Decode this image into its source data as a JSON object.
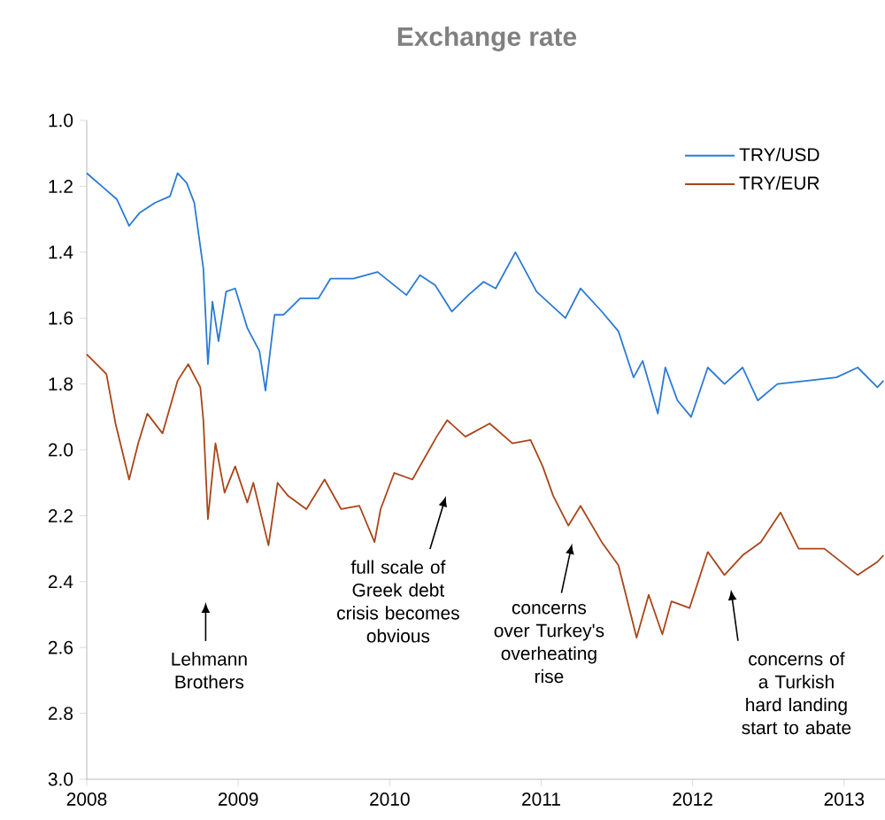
{
  "chart_data": {
    "type": "line",
    "title": "Exchange rate",
    "xlim": [
      2008,
      2013.27
    ],
    "xticks": [
      2008,
      2009,
      2010,
      2011,
      2012,
      2013
    ],
    "ylim": [
      3.0,
      1.0
    ],
    "yticks": [
      {
        "value": 1.0,
        "label": "1.0"
      },
      {
        "value": 1.2,
        "label": "1.2"
      },
      {
        "value": 1.4,
        "label": "1.4"
      },
      {
        "value": 1.6,
        "label": "1.6"
      },
      {
        "value": 1.8,
        "label": "1.8"
      },
      {
        "value": 2.0,
        "label": "2.0"
      },
      {
        "value": 2.2,
        "label": "2.2"
      },
      {
        "value": 2.4,
        "label": "2.4"
      },
      {
        "value": 2.6,
        "label": "2.6"
      },
      {
        "value": 2.8,
        "label": "2.8"
      },
      {
        "value": 3.0,
        "label": "3.0"
      }
    ],
    "legend": "top right",
    "grid": false,
    "series": [
      {
        "name": "TRY/USD",
        "color": "#2a7ad5",
        "x": [
          2008.0,
          2008.05,
          2008.1,
          2008.2,
          2008.28,
          2008.35,
          2008.45,
          2008.55,
          2008.6,
          2008.66,
          2008.71,
          2008.74,
          2008.77,
          2008.8,
          2008.83,
          2008.87,
          2008.92,
          2008.98,
          2009.06,
          2009.14,
          2009.18,
          2009.24,
          2009.3,
          2009.41,
          2009.53,
          2009.61,
          2009.76,
          2009.92,
          2010.11,
          2010.2,
          2010.3,
          2010.41,
          2010.52,
          2010.62,
          2010.7,
          2010.83,
          2010.97,
          2011.16,
          2011.26,
          2011.4,
          2011.51,
          2011.61,
          2011.67,
          2011.77,
          2011.82,
          2011.9,
          2011.99,
          2012.1,
          2012.21,
          2012.33,
          2012.43,
          2012.56,
          2012.76,
          2012.95,
          2013.09,
          2013.22,
          2013.26
        ],
        "values": [
          1.16,
          1.18,
          1.2,
          1.24,
          1.32,
          1.28,
          1.25,
          1.23,
          1.16,
          1.19,
          1.25,
          1.35,
          1.45,
          1.74,
          1.55,
          1.67,
          1.52,
          1.51,
          1.63,
          1.7,
          1.82,
          1.59,
          1.59,
          1.54,
          1.54,
          1.48,
          1.48,
          1.46,
          1.53,
          1.47,
          1.5,
          1.58,
          1.53,
          1.49,
          1.51,
          1.4,
          1.52,
          1.6,
          1.51,
          1.58,
          1.64,
          1.78,
          1.73,
          1.89,
          1.75,
          1.85,
          1.9,
          1.75,
          1.8,
          1.75,
          1.85,
          1.8,
          1.79,
          1.78,
          1.75,
          1.81,
          1.79
        ]
      },
      {
        "name": "TRY/EUR",
        "color": "#a9451a",
        "x": [
          2008.0,
          2008.13,
          2008.19,
          2008.28,
          2008.34,
          2008.4,
          2008.5,
          2008.6,
          2008.67,
          2008.75,
          2008.77,
          2008.8,
          2008.85,
          2008.91,
          2008.98,
          2009.06,
          2009.1,
          2009.2,
          2009.26,
          2009.33,
          2009.45,
          2009.57,
          2009.68,
          2009.8,
          2009.9,
          2009.94,
          2010.03,
          2010.15,
          2010.31,
          2010.38,
          2010.5,
          2010.66,
          2010.81,
          2010.93,
          2011.01,
          2011.08,
          2011.18,
          2011.26,
          2011.4,
          2011.51,
          2011.63,
          2011.71,
          2011.8,
          2011.86,
          2011.98,
          2012.1,
          2012.21,
          2012.33,
          2012.45,
          2012.58,
          2012.7,
          2012.87,
          2013.09,
          2013.22,
          2013.26
        ],
        "values": [
          1.71,
          1.77,
          1.92,
          2.09,
          1.98,
          1.89,
          1.95,
          1.79,
          1.74,
          1.81,
          1.91,
          2.21,
          1.98,
          2.13,
          2.05,
          2.16,
          2.1,
          2.29,
          2.1,
          2.14,
          2.18,
          2.09,
          2.18,
          2.17,
          2.28,
          2.18,
          2.07,
          2.09,
          1.96,
          1.91,
          1.96,
          1.92,
          1.98,
          1.97,
          2.05,
          2.14,
          2.23,
          2.17,
          2.28,
          2.35,
          2.57,
          2.44,
          2.56,
          2.46,
          2.48,
          2.31,
          2.38,
          2.32,
          2.28,
          2.19,
          2.3,
          2.3,
          2.38,
          2.34,
          2.32
        ]
      }
    ],
    "annotations": [
      "Lehmann Brothers",
      "full scale of Greek debt crisis becomes obvious",
      "concerns over Turkey's overheating rise",
      "concerns of a Turkish hard landing start to abate"
    ]
  }
}
